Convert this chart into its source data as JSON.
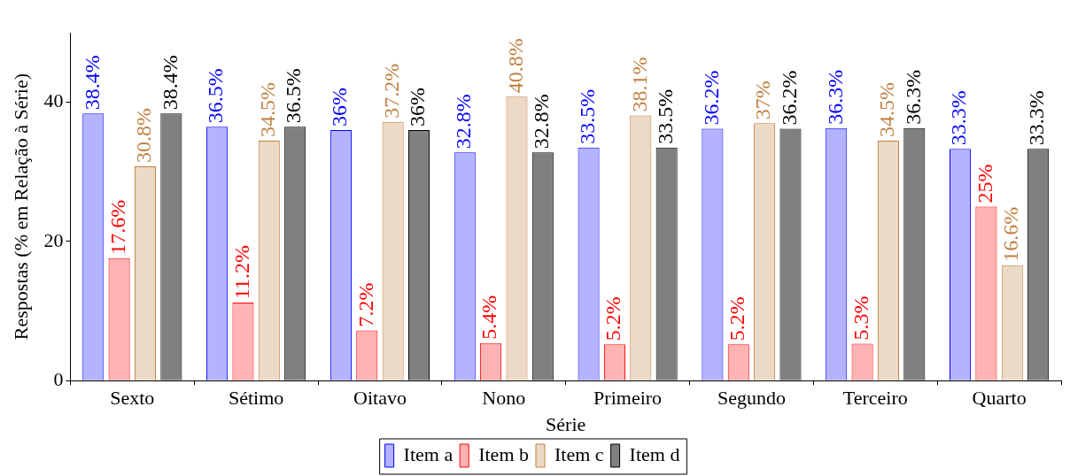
{
  "chart_data": {
    "type": "bar",
    "xlabel": "Série",
    "ylabel": "Respostas (% em Relação à Série)",
    "categories": [
      "Sexto",
      "Sétimo",
      "Oitavo",
      "Nono",
      "Primeiro",
      "Segundo",
      "Terceiro",
      "Quarto"
    ],
    "ylim": [
      0,
      50
    ],
    "yticks": [
      0,
      20,
      40
    ],
    "grid": false,
    "legend": "bottom",
    "series": [
      {
        "name": "Item a",
        "color": "#b3b3ff",
        "values": [
          38.4,
          36.5,
          36,
          32.8,
          33.5,
          36.2,
          36.3,
          33.3
        ],
        "value_labels": [
          "38.4%",
          "36.5%",
          "36%",
          "32.8%",
          "33.5%",
          "36.2%",
          "36.3%",
          "33.3%"
        ]
      },
      {
        "name": "Item b",
        "color": "#ffb3b3",
        "values": [
          17.6,
          11.2,
          7.2,
          5.4,
          5.2,
          5.2,
          5.3,
          25
        ],
        "value_labels": [
          "17.6%",
          "11.2%",
          "7.2%",
          "5.4%",
          "5.2%",
          "5.2%",
          "5.3%",
          "25%"
        ]
      },
      {
        "name": "Item c",
        "color": "#ecd9c6",
        "values": [
          30.8,
          34.5,
          37.2,
          40.8,
          38.1,
          37,
          34.5,
          16.6
        ],
        "value_labels": [
          "30.8%",
          "34.5%",
          "37.2%",
          "40.8%",
          "38.1%",
          "37%",
          "34.5%",
          "16.6%"
        ]
      },
      {
        "name": "Item d",
        "color": "#808080",
        "values": [
          38.4,
          36.5,
          36,
          32.8,
          33.5,
          36.2,
          36.3,
          33.3
        ],
        "value_labels": [
          "38.4%",
          "36.5%",
          "36%",
          "32.8%",
          "33.5%",
          "36.2%",
          "36.3%",
          "33.3%"
        ]
      }
    ]
  }
}
